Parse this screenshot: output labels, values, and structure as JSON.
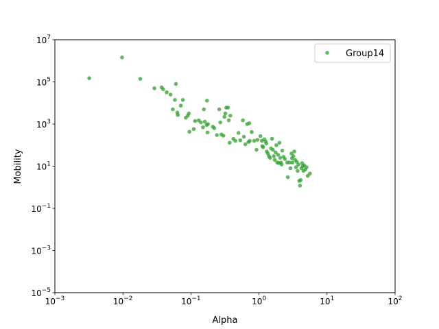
{
  "chart_data": {
    "type": "scatter",
    "xlabel": "Alpha",
    "ylabel": "Mobility",
    "xscale": "log",
    "yscale": "log",
    "xlim": [
      0.001,
      100
    ],
    "ylim": [
      1e-05,
      10000000
    ],
    "x_ticks": [
      {
        "value": 0.001,
        "base": "10",
        "exp": "−3"
      },
      {
        "value": 0.01,
        "base": "10",
        "exp": "−2"
      },
      {
        "value": 0.1,
        "base": "10",
        "exp": "−1"
      },
      {
        "value": 1,
        "base": "10",
        "exp": "0"
      },
      {
        "value": 10,
        "base": "10",
        "exp": "1"
      },
      {
        "value": 100,
        "base": "10",
        "exp": "2"
      }
    ],
    "y_ticks": [
      {
        "value": 1e-05,
        "base": "10",
        "exp": "−5"
      },
      {
        "value": 0.001,
        "base": "10",
        "exp": "−3"
      },
      {
        "value": 0.1,
        "base": "10",
        "exp": "−1"
      },
      {
        "value": 10,
        "base": "10",
        "exp": "1"
      },
      {
        "value": 1000,
        "base": "10",
        "exp": "3"
      },
      {
        "value": 100000,
        "base": "10",
        "exp": "5"
      },
      {
        "value": 10000000,
        "base": "10",
        "exp": "7"
      }
    ],
    "grid": false,
    "legend_position": "top-right",
    "series": [
      {
        "name": "Group14",
        "color": "#2ca02c",
        "points": [
          [
            0.0032,
            150000
          ],
          [
            0.0097,
            1450000
          ],
          [
            0.018,
            140000
          ],
          [
            0.029,
            50000
          ],
          [
            0.037,
            55000
          ],
          [
            0.039,
            45000
          ],
          [
            0.044,
            32000
          ],
          [
            0.05,
            25000
          ],
          [
            0.06,
            80000
          ],
          [
            0.058,
            14000
          ],
          [
            0.054,
            5000
          ],
          [
            0.063,
            3500
          ],
          [
            0.064,
            2700
          ],
          [
            0.071,
            7500
          ],
          [
            0.076,
            14000
          ],
          [
            0.084,
            2000
          ],
          [
            0.09,
            2500
          ],
          [
            0.093,
            3200
          ],
          [
            0.095,
            430
          ],
          [
            0.11,
            580
          ],
          [
            0.115,
            1400
          ],
          [
            0.13,
            1500
          ],
          [
            0.14,
            1200
          ],
          [
            0.15,
            700
          ],
          [
            0.155,
            5000
          ],
          [
            0.16,
            1300
          ],
          [
            0.17,
            900
          ],
          [
            0.172,
            13000
          ],
          [
            0.175,
            400
          ],
          [
            0.178,
            1000
          ],
          [
            0.21,
            750
          ],
          [
            0.22,
            640
          ],
          [
            0.24,
            300
          ],
          [
            0.26,
            5000
          ],
          [
            0.27,
            1200
          ],
          [
            0.28,
            320
          ],
          [
            0.3,
            280
          ],
          [
            0.31,
            2200
          ],
          [
            0.32,
            3200
          ],
          [
            0.33,
            6000
          ],
          [
            0.35,
            6000
          ],
          [
            0.36,
            1500
          ],
          [
            0.37,
            130
          ],
          [
            0.38,
            2500
          ],
          [
            0.42,
            200
          ],
          [
            0.45,
            160
          ],
          [
            0.5,
            380
          ],
          [
            0.53,
            170
          ],
          [
            0.58,
            1500
          ],
          [
            0.6,
            250
          ],
          [
            0.63,
            110
          ],
          [
            0.67,
            1000
          ],
          [
            0.7,
            140
          ],
          [
            0.72,
            1100
          ],
          [
            0.73,
            160
          ],
          [
            0.78,
            420
          ],
          [
            0.85,
            160
          ],
          [
            0.92,
            60
          ],
          [
            0.95,
            180
          ],
          [
            1.05,
            270
          ],
          [
            1.1,
            160
          ],
          [
            1.12,
            90
          ],
          [
            1.15,
            80
          ],
          [
            1.2,
            190
          ],
          [
            1.25,
            150
          ],
          [
            1.28,
            120
          ],
          [
            1.3,
            50
          ],
          [
            1.35,
            40
          ],
          [
            1.4,
            30
          ],
          [
            1.45,
            25
          ],
          [
            1.5,
            70
          ],
          [
            1.55,
            200
          ],
          [
            1.6,
            60
          ],
          [
            1.65,
            30
          ],
          [
            1.7,
            20
          ],
          [
            1.75,
            45
          ],
          [
            1.8,
            100
          ],
          [
            1.85,
            15
          ],
          [
            1.9,
            35
          ],
          [
            1.95,
            14
          ],
          [
            2.0,
            130
          ],
          [
            2.05,
            25
          ],
          [
            2.1,
            15
          ],
          [
            2.15,
            12
          ],
          [
            2.2,
            55
          ],
          [
            2.3,
            28
          ],
          [
            2.4,
            22
          ],
          [
            2.6,
            15
          ],
          [
            2.65,
            3
          ],
          [
            2.8,
            15
          ],
          [
            2.9,
            8
          ],
          [
            3.0,
            40
          ],
          [
            3.05,
            24
          ],
          [
            3.1,
            15
          ],
          [
            3.2,
            30
          ],
          [
            3.3,
            50
          ],
          [
            3.4,
            20
          ],
          [
            3.5,
            9
          ],
          [
            3.6,
            16
          ],
          [
            3.7,
            6
          ],
          [
            3.8,
            12
          ],
          [
            3.9,
            2
          ],
          [
            4.0,
            1.2
          ],
          [
            4.1,
            2.2
          ],
          [
            4.2,
            8
          ],
          [
            4.3,
            14
          ],
          [
            4.4,
            10
          ],
          [
            4.5,
            6
          ],
          [
            4.6,
            11
          ],
          [
            4.8,
            7
          ],
          [
            5.0,
            9
          ],
          [
            5.2,
            3.5
          ],
          [
            5.6,
            4.5
          ]
        ]
      }
    ]
  }
}
